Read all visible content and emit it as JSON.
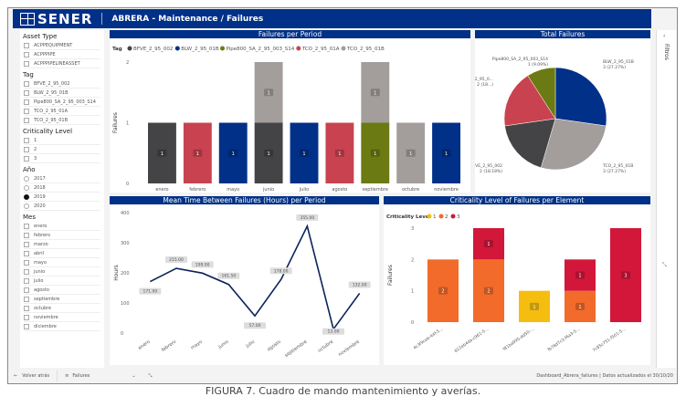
{
  "header": {
    "brand": "SENER",
    "title": "ABRERA - Maintenance / Failures"
  },
  "sidebar": {
    "asset_type": {
      "label": "Asset Type",
      "items": [
        "ACPPEQUIPMENT",
        "ACPPPIPE",
        "ACPPPIPELINEASSET"
      ]
    },
    "tag": {
      "label": "Tag",
      "items": [
        "BFVE_2_95_002",
        "BLW_2_95_01B",
        "Pipe800_SA_2_95_003_S14",
        "TCO_2_95_01A",
        "TCO_2_95_01B"
      ]
    },
    "criticality": {
      "label": "Criticality Level",
      "items": [
        "1",
        "2",
        "3"
      ]
    },
    "year": {
      "label": "Año",
      "items": [
        "2017",
        "2018",
        "2019",
        "2020"
      ],
      "selected": "2019"
    },
    "month": {
      "label": "Mes",
      "items": [
        "enero",
        "febrero",
        "marzo",
        "abril",
        "mayo",
        "junio",
        "julio",
        "agosto",
        "septiembre",
        "octubre",
        "noviembre",
        "diciembre"
      ]
    }
  },
  "right_panel": {
    "label": "Filtros"
  },
  "bottom": {
    "back": "Volver atrás",
    "page": "Failures",
    "status": "Dashboard_Abrera_failures  |  Datos actualizados el 30/10/20"
  },
  "caption": "FIGURA 7. Cuadro de mando mantenimiento y averías.",
  "colors": {
    "BFVE_2_95_002": "#444446",
    "BLW_2_95_01B": "#003087",
    "Pipe800_SA_2_95_003_S14": "#6b7a12",
    "TCO_2_95_01A": "#c8434f",
    "TCO_2_95_01B": "#a39e9b",
    "c1": "#f5bd0f",
    "c2": "#f26b2a",
    "c3": "#d2173a"
  },
  "chart_data": [
    {
      "type": "bar",
      "title": "Failures per Period",
      "legend_title": "Tag",
      "ylabel": "Failures",
      "ylim": [
        0,
        2
      ],
      "yticks": [
        0,
        1,
        2
      ],
      "categories": [
        "enero",
        "febrero",
        "mayo",
        "junio",
        "julio",
        "agosto",
        "septiembre",
        "octubre",
        "noviembre"
      ],
      "series": [
        {
          "name": "BFVE_2_95_002",
          "values": [
            1,
            0,
            0,
            1,
            0,
            0,
            0,
            0,
            0
          ]
        },
        {
          "name": "BLW_2_95_01B",
          "values": [
            0,
            0,
            1,
            0,
            1,
            0,
            0,
            0,
            1
          ]
        },
        {
          "name": "Pipe800_SA_2_95_003_S14",
          "values": [
            0,
            0,
            0,
            0,
            0,
            0,
            1,
            0,
            0
          ]
        },
        {
          "name": "TCO_2_95_01A",
          "values": [
            0,
            1,
            0,
            0,
            0,
            1,
            0,
            0,
            0
          ]
        },
        {
          "name": "TCO_2_95_01B",
          "values": [
            0,
            0,
            0,
            1,
            0,
            0,
            1,
            1,
            0
          ]
        }
      ]
    },
    {
      "type": "pie",
      "title": "Total Failures",
      "slices": [
        {
          "name": "BLW_2_95_01B",
          "value": 3,
          "label": "3 (27.27%)"
        },
        {
          "name": "TCO_2_95_01B",
          "value": 3,
          "label": "3 (27.27%)"
        },
        {
          "name": "BFVE_2_95_002",
          "value": 2,
          "label": "2 (18.18%)"
        },
        {
          "name": "TCO_2_95_0...",
          "value": 2,
          "label": "2 (18...)"
        },
        {
          "name": "Pipe800_SA_2_95_003_S14",
          "value": 1,
          "label": "1 (9.09%)"
        }
      ]
    },
    {
      "type": "line",
      "title": "Mean Time Between Failures (Hours) per Period",
      "ylabel": "Hours",
      "ylim": [
        0,
        400
      ],
      "yticks": [
        0,
        100,
        200,
        300,
        400
      ],
      "categories": [
        "enero",
        "febrero",
        "mayo",
        "junio",
        "julio",
        "agosto",
        "septiembre",
        "octubre",
        "noviembre"
      ],
      "values": [
        171.0,
        215.0,
        199.0,
        161.5,
        57.0,
        178.0,
        355.0,
        13.0,
        132.0
      ],
      "labels": [
        "171.00",
        "215.00",
        "199.00",
        "161.50",
        "57.00",
        "178.00",
        "355.00",
        "13.00",
        "132.00"
      ]
    },
    {
      "type": "bar",
      "title": "Criticality Level of Failures per Element",
      "legend_title": "Criticality Level",
      "ylabel": "Failures",
      "ylim": [
        0,
        3
      ],
      "yticks": [
        0,
        1,
        2,
        3
      ],
      "categories": [
        "4c3f9ceb-44f-5...",
        "812eb4da-c961-5...",
        "f81ba995-dd50-...",
        "fb76d7c3-f6a3-5...",
        "7c85c751-f501-5..."
      ],
      "series": [
        {
          "name": "1",
          "values": [
            0,
            0,
            1,
            0,
            0
          ]
        },
        {
          "name": "2",
          "values": [
            2,
            2,
            0,
            1,
            0
          ]
        },
        {
          "name": "3",
          "values": [
            0,
            1,
            0,
            1,
            3
          ]
        }
      ]
    }
  ]
}
